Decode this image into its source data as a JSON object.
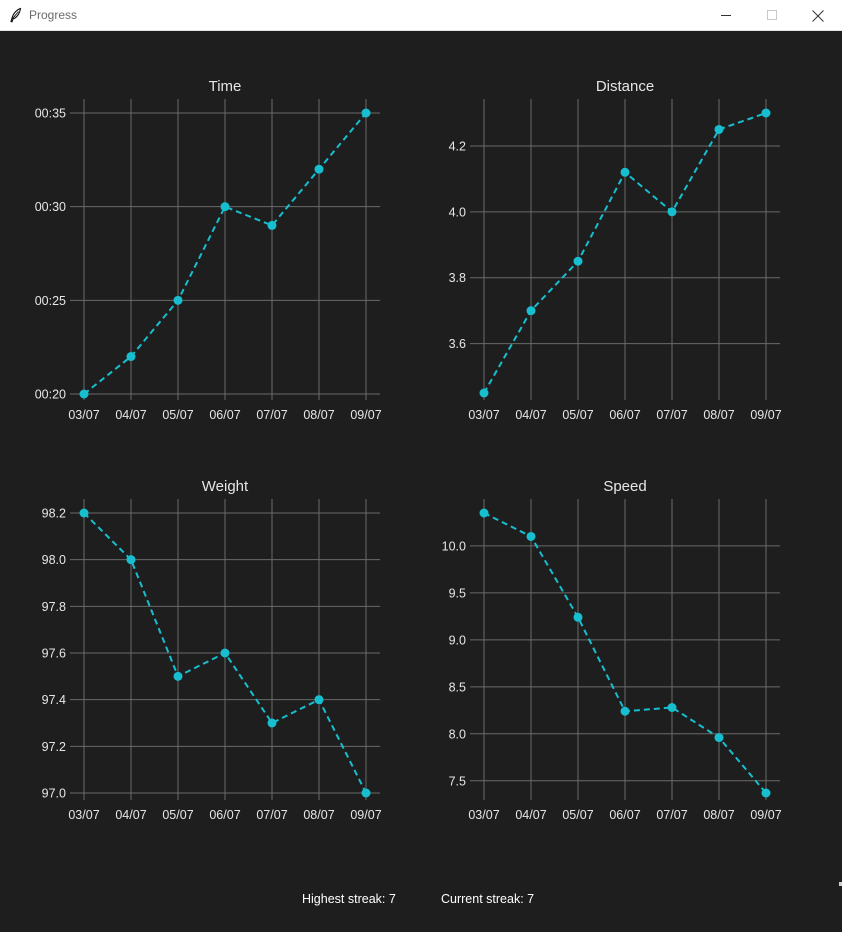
{
  "window": {
    "title": "Progress",
    "app_icon": "feather-icon",
    "controls": [
      "minimize-icon",
      "maximize-icon",
      "close-icon"
    ]
  },
  "theme": {
    "background": "#1e1e1e",
    "line_color": "#17becf",
    "grid_color": "#6a6a6a",
    "text_color": "#e6e6e6"
  },
  "chart_data": [
    {
      "id": "time",
      "type": "line",
      "title": "Time",
      "categories": [
        "03/07",
        "04/07",
        "05/07",
        "06/07",
        "07/07",
        "08/07",
        "09/07"
      ],
      "values": [
        20,
        22,
        25,
        30,
        29,
        32,
        35
      ],
      "ylim": [
        20,
        35
      ],
      "y_ticks": [
        20,
        25,
        30,
        35
      ],
      "y_tick_labels": [
        "00:20",
        "00:25",
        "00:30",
        "00:35"
      ],
      "line_style": "dashed",
      "marker": "circle",
      "grid": true
    },
    {
      "id": "distance",
      "type": "line",
      "title": "Distance",
      "categories": [
        "03/07",
        "04/07",
        "05/07",
        "06/07",
        "07/07",
        "08/07",
        "09/07"
      ],
      "values": [
        3.45,
        3.7,
        3.85,
        4.12,
        4.0,
        4.25,
        4.3
      ],
      "ylim": [
        3.45,
        4.3
      ],
      "y_ticks": [
        3.6,
        3.8,
        4.0,
        4.2
      ],
      "y_tick_labels": [
        "3.6",
        "3.8",
        "4.0",
        "4.2"
      ],
      "line_style": "dashed",
      "marker": "circle",
      "grid": true
    },
    {
      "id": "weight",
      "type": "line",
      "title": "Weight",
      "categories": [
        "03/07",
        "04/07",
        "05/07",
        "06/07",
        "07/07",
        "08/07",
        "09/07"
      ],
      "values": [
        98.2,
        98.0,
        97.5,
        97.6,
        97.3,
        97.4,
        97.0
      ],
      "ylim": [
        97.0,
        98.2
      ],
      "y_ticks": [
        97.0,
        97.2,
        97.4,
        97.6,
        97.8,
        98.0,
        98.2
      ],
      "y_tick_labels": [
        "97.0",
        "97.2",
        "97.4",
        "97.6",
        "97.8",
        "98.0",
        "98.2"
      ],
      "line_style": "dashed",
      "marker": "circle",
      "grid": true
    },
    {
      "id": "speed",
      "type": "line",
      "title": "Speed",
      "categories": [
        "03/07",
        "04/07",
        "05/07",
        "06/07",
        "07/07",
        "08/07",
        "09/07"
      ],
      "values": [
        10.35,
        10.1,
        9.24,
        8.24,
        8.28,
        7.96,
        7.37
      ],
      "ylim": [
        7.37,
        10.35
      ],
      "y_ticks": [
        7.5,
        8.0,
        8.5,
        9.0,
        9.5,
        10.0
      ],
      "y_tick_labels": [
        "7.5",
        "8.0",
        "8.5",
        "9.0",
        "9.5",
        "10.0"
      ],
      "line_style": "dashed",
      "marker": "circle",
      "grid": true
    }
  ],
  "footer": {
    "highest_streak": "Highest streak: 7",
    "current_streak": "Current streak: 7"
  }
}
